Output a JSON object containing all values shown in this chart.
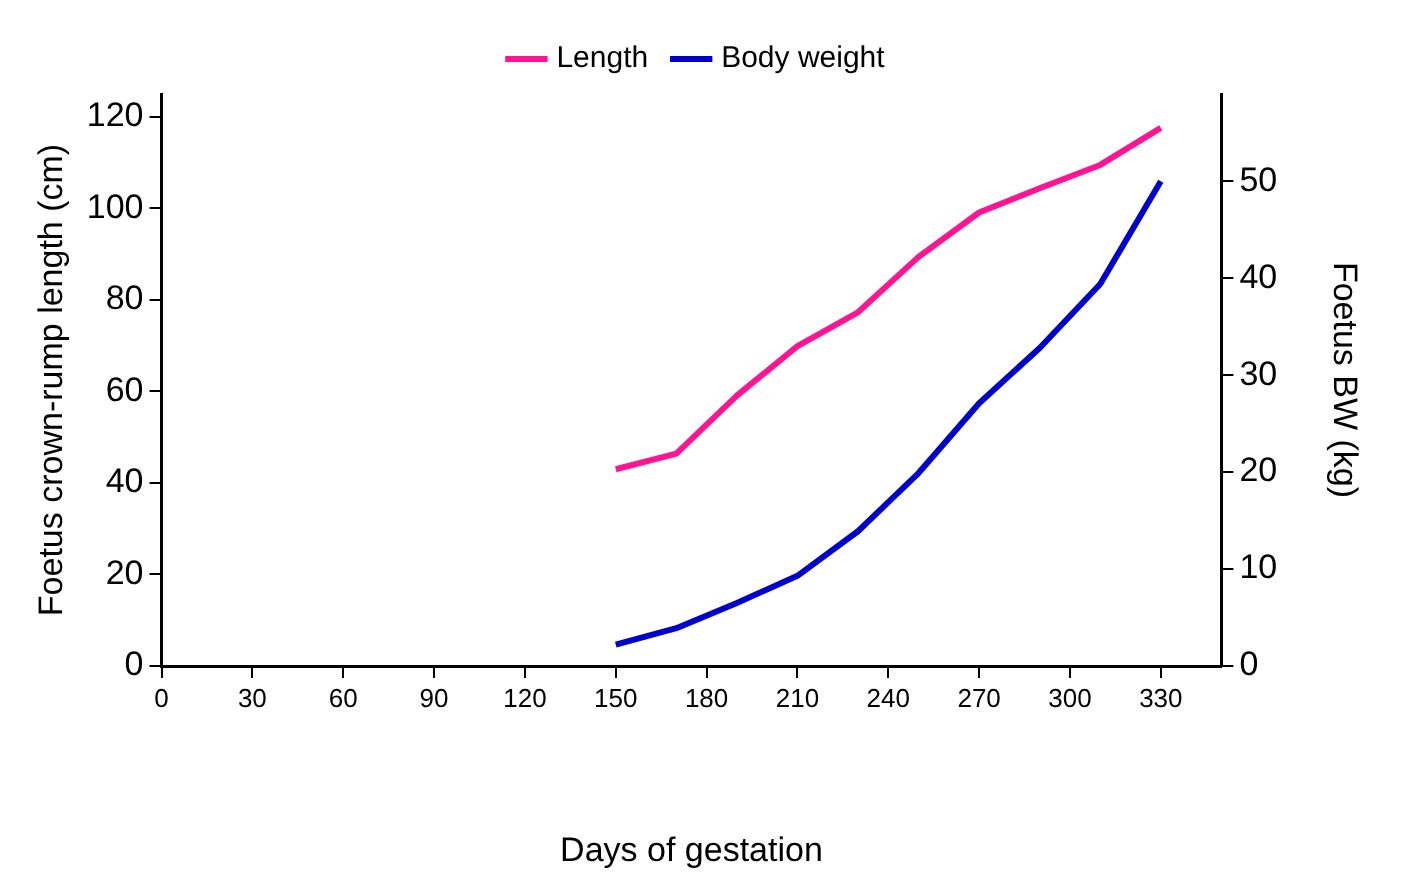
{
  "chart_data": {
    "type": "line",
    "xlabel": "Days of gestation",
    "ylabel": "Foetus crown-rump length (cm)",
    "y2label": "Foetus BW (kg)",
    "x": [
      150,
      170,
      190,
      210,
      230,
      250,
      270,
      290,
      310,
      330
    ],
    "series": [
      {
        "name": "Length",
        "color": "#ff1493",
        "values": [
          43.0,
          46.4,
          59.1,
          69.9,
          77.3,
          89.4,
          99.1,
          104.4,
          109.5,
          117.6
        ]
      },
      {
        "name": "Body weight",
        "color": "#0000cc",
        "axis": "y2",
        "values": [
          2.2,
          3.9,
          6.5,
          9.3,
          13.9,
          19.9,
          27.1,
          32.8,
          39.4,
          50.0
        ]
      }
    ],
    "xlim": [
      0,
      350
    ],
    "xticks": [
      0,
      30,
      60,
      90,
      120,
      150,
      180,
      210,
      240,
      270,
      300,
      330
    ],
    "ylim": [
      0,
      125
    ],
    "yticks": [
      0,
      20,
      40,
      60,
      80,
      100,
      120
    ],
    "y2lim": [
      0,
      59
    ],
    "y2ticks": [
      0,
      10,
      20,
      30,
      40,
      50
    ],
    "grid": false,
    "legend": "top",
    "marker": "none",
    "line_style": "solid"
  }
}
